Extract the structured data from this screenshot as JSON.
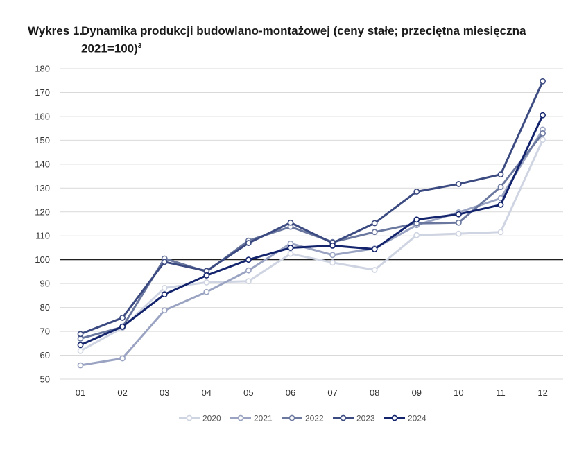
{
  "title": {
    "label": "Wykres 1.",
    "text": "Dynamika produkcji budowlano-montażowej (ceny stałe; przeciętna miesięczna 2021=100)",
    "superscript": "3"
  },
  "chart_data": {
    "type": "line",
    "categories": [
      "01",
      "02",
      "03",
      "04",
      "05",
      "06",
      "07",
      "08",
      "09",
      "10",
      "11",
      "12"
    ],
    "ylim": [
      50,
      180
    ],
    "yticks": [
      50,
      60,
      70,
      80,
      90,
      100,
      110,
      120,
      130,
      140,
      150,
      160,
      170,
      180
    ],
    "reference_line": 100,
    "grid": "horizontal",
    "legend_position": "bottom-center",
    "series": [
      {
        "name": "2020",
        "color": "#cfd4e2",
        "values": [
          61.8,
          71.5,
          88.2,
          90.5,
          91.0,
          102.5,
          98.8,
          95.7,
          110.3,
          110.9,
          111.6,
          150.2
        ]
      },
      {
        "name": "2021",
        "color": "#9aa4c2",
        "values": [
          55.8,
          58.7,
          78.8,
          86.5,
          95.5,
          106.8,
          102.0,
          104.7,
          114.5,
          119.8,
          125.7,
          154.5
        ]
      },
      {
        "name": "2022",
        "color": "#6a779f",
        "values": [
          67.0,
          71.8,
          100.5,
          95.0,
          108.0,
          113.8,
          107.4,
          111.6,
          115.2,
          115.5,
          130.5,
          152.9
        ]
      },
      {
        "name": "2023",
        "color": "#3b4a80",
        "values": [
          68.9,
          75.7,
          99.1,
          95.3,
          107.0,
          115.5,
          107.0,
          115.3,
          128.5,
          131.7,
          135.7,
          174.7
        ]
      },
      {
        "name": "2024",
        "color": "#13246d",
        "values": [
          64.3,
          72.0,
          85.5,
          93.4,
          100.0,
          105.0,
          105.9,
          104.4,
          116.8,
          119.0,
          123.0,
          160.5
        ]
      }
    ]
  }
}
